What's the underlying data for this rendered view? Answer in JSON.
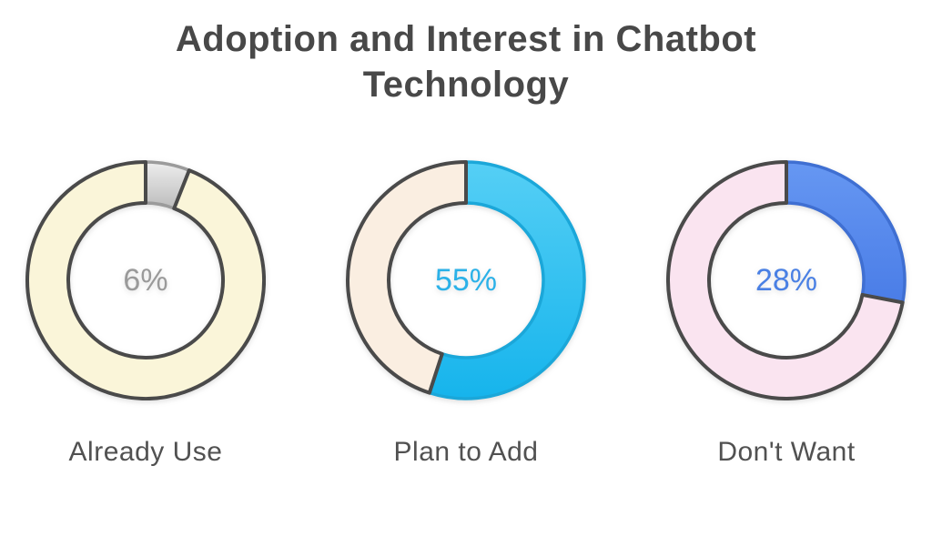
{
  "chart_data": {
    "type": "pie",
    "variant": "donut",
    "title": "Adoption and Interest in Chatbot Technology",
    "unit": "%",
    "categories": [
      "Already Use",
      "Plan to Add",
      "Don't Want"
    ],
    "values": [
      6,
      55,
      28
    ],
    "layout": {
      "start_angle_deg": 0,
      "direction": "clockwise",
      "value_label_position": "center",
      "category_label_position": "below",
      "legend": "none",
      "grid": false
    },
    "charts": [
      {
        "label": "Already Use",
        "value": 6,
        "value_label": "6%",
        "colors": {
          "segment_gradient_top": "#ededed",
          "segment_gradient_bottom": "#bcbcbc",
          "segment_border": "#9b9b9b",
          "remainder_fill": "#faf5d9",
          "remainder_border": "#4a4a4a",
          "value_text": "#9a9a9a"
        }
      },
      {
        "label": "Plan to Add",
        "value": 55,
        "value_label": "55%",
        "colors": {
          "segment_gradient_top": "#55cff5",
          "segment_gradient_bottom": "#16b4ec",
          "segment_border": "#1ba7d9",
          "remainder_fill": "#faeee1",
          "remainder_border": "#4a4a4a",
          "value_text": "#2bb1e8"
        }
      },
      {
        "label": "Don't Want",
        "value": 28,
        "value_label": "28%",
        "colors": {
          "segment_gradient_top": "#6697f2",
          "segment_gradient_bottom": "#4a7de7",
          "segment_border": "#3f6fd2",
          "remainder_fill": "#fae4f0",
          "remainder_border": "#4a4a4a",
          "value_text": "#4a80e4"
        }
      }
    ],
    "text_colors": {
      "title": "#484848",
      "caption": "#515151"
    }
  }
}
